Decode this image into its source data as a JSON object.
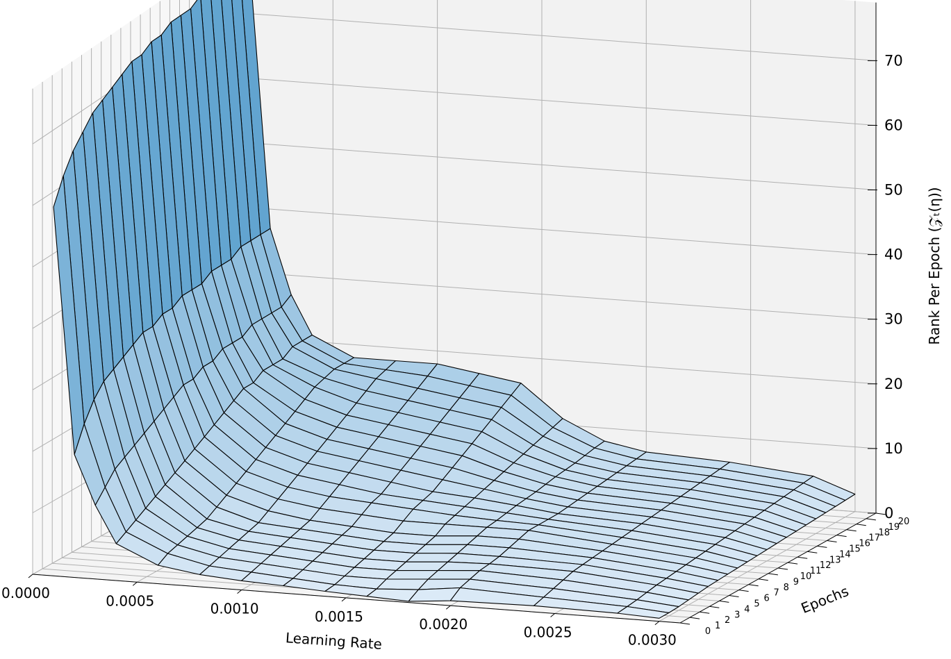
{
  "chart_data": {
    "type": "surface3d",
    "title": "",
    "xlabel": "Learning Rate",
    "ylabel": "Epochs",
    "zlabel": "Rank Per Epoch (𝒵ₜ(η))",
    "x_ticks": [
      0.0,
      0.0005,
      0.001,
      0.0015,
      0.002,
      0.0025,
      0.003
    ],
    "x_tick_labels": [
      "0.0000",
      "0.0005",
      "0.0010",
      "0.0015",
      "0.0020",
      "0.0025",
      "0.0030"
    ],
    "y_ticks": [
      0,
      1,
      2,
      3,
      4,
      5,
      6,
      7,
      8,
      9,
      10,
      11,
      12,
      13,
      14,
      15,
      16,
      17,
      18,
      19,
      20
    ],
    "y_tick_labels": [
      "0",
      "1",
      "2",
      "3",
      "4",
      "5",
      "6",
      "7",
      "8",
      "9",
      "10",
      "11",
      "12",
      "13",
      "14",
      "15",
      "16",
      "17",
      "18",
      "19",
      "20"
    ],
    "z_ticks": [
      0,
      10,
      20,
      30,
      40,
      50,
      60,
      70
    ],
    "z_tick_labels": [
      "0",
      "10",
      "20",
      "30",
      "40",
      "50",
      "60",
      "70"
    ],
    "xlim": [
      0.0,
      0.0031
    ],
    "ylim": [
      0,
      20
    ],
    "zlim": [
      0,
      79
    ],
    "grid": true,
    "colormap": "Blues",
    "edge_color": "#000000",
    "x": [
      0.0001,
      0.0002,
      0.0003,
      0.0004,
      0.0006,
      0.0008,
      0.001,
      0.0012,
      0.0014,
      0.0016,
      0.0018,
      0.002,
      0.0024,
      0.0028,
      0.003
    ],
    "z": [
      [
        60,
        20,
        12,
        6,
        3,
        2,
        1.5,
        1.2,
        0.8,
        0.5,
        0.2,
        0.8,
        1.0,
        0.8,
        0.5
      ],
      [
        64,
        24,
        14,
        7,
        4,
        2.5,
        2,
        1.5,
        1,
        0.8,
        1.2,
        2,
        1.5,
        1,
        0.5
      ],
      [
        67,
        27,
        16,
        8,
        4.5,
        3,
        2.5,
        2,
        1.5,
        1.5,
        2,
        2.5,
        2,
        1.2,
        0.6
      ],
      [
        69,
        29,
        17,
        9,
        5,
        3.5,
        3,
        2.5,
        2,
        2,
        2.5,
        3,
        2.5,
        1.5,
        0.8
      ],
      [
        71,
        30,
        18,
        10,
        5.5,
        4,
        3.5,
        3,
        2.5,
        2.5,
        3,
        3.2,
        3,
        1.8,
        1
      ],
      [
        72,
        31,
        19,
        11,
        6,
        4.5,
        4,
        3.5,
        3,
        3,
        3.5,
        3.5,
        3.2,
        2,
        1.2
      ],
      [
        73,
        32,
        20,
        12,
        7,
        5,
        4.5,
        4,
        3.5,
        3.5,
        4,
        4,
        3.4,
        2.2,
        1.3
      ],
      [
        74,
        33,
        21,
        13,
        8,
        6,
        5,
        4.5,
        4,
        4,
        4.5,
        4.5,
        3.6,
        2.4,
        1.4
      ],
      [
        75,
        33,
        22,
        14,
        9,
        7,
        6,
        5.5,
        5,
        5,
        5,
        5,
        3.8,
        2.6,
        1.5
      ],
      [
        75,
        34,
        23,
        15,
        10,
        8,
        7,
        6.5,
        6,
        5.5,
        5.2,
        5,
        4,
        2.8,
        1.6
      ],
      [
        76,
        34,
        23,
        16,
        11,
        9,
        8,
        7,
        6.5,
        6,
        5.5,
        5,
        4.2,
        3,
        1.7
      ],
      [
        76,
        35,
        24,
        17,
        12,
        10,
        9,
        8,
        7,
        6.5,
        5.8,
        5,
        4.4,
        3.2,
        1.8
      ],
      [
        77,
        35,
        24,
        18,
        13,
        11,
        10,
        9,
        8,
        7,
        6,
        5.2,
        4.6,
        3.4,
        1.9
      ],
      [
        77,
        35,
        25,
        19,
        14,
        12,
        11,
        10,
        9,
        7.5,
        6.2,
        5.4,
        4.8,
        3.6,
        2
      ],
      [
        77,
        36,
        25,
        19,
        15,
        13,
        12,
        11,
        10,
        8,
        6.5,
        5.6,
        5,
        3.8,
        2.1
      ],
      [
        78,
        36,
        25,
        20,
        16,
        14,
        13,
        12,
        11,
        8.5,
        6.8,
        5.8,
        5.2,
        4,
        2.2
      ],
      [
        78,
        36,
        26,
        20,
        17,
        15,
        14,
        13,
        12,
        9,
        7,
        6,
        5.4,
        4.2,
        2.3
      ],
      [
        78,
        37,
        26,
        20,
        17.5,
        16,
        15,
        14,
        13,
        9.5,
        7.2,
        6.2,
        5.6,
        4.4,
        2.4
      ],
      [
        78,
        37,
        26,
        21,
        18,
        17,
        16,
        15,
        14,
        10,
        7.5,
        6.4,
        5.8,
        4.6,
        2.5
      ],
      [
        78,
        37,
        26,
        21,
        18,
        17.5,
        17,
        16,
        15,
        10.5,
        7.8,
        6.6,
        6,
        4.8,
        2.6
      ],
      [
        78,
        37,
        27,
        21,
        18,
        18,
        18,
        17,
        16,
        11,
        8,
        6.8,
        6.2,
        5,
        2.7
      ]
    ]
  }
}
